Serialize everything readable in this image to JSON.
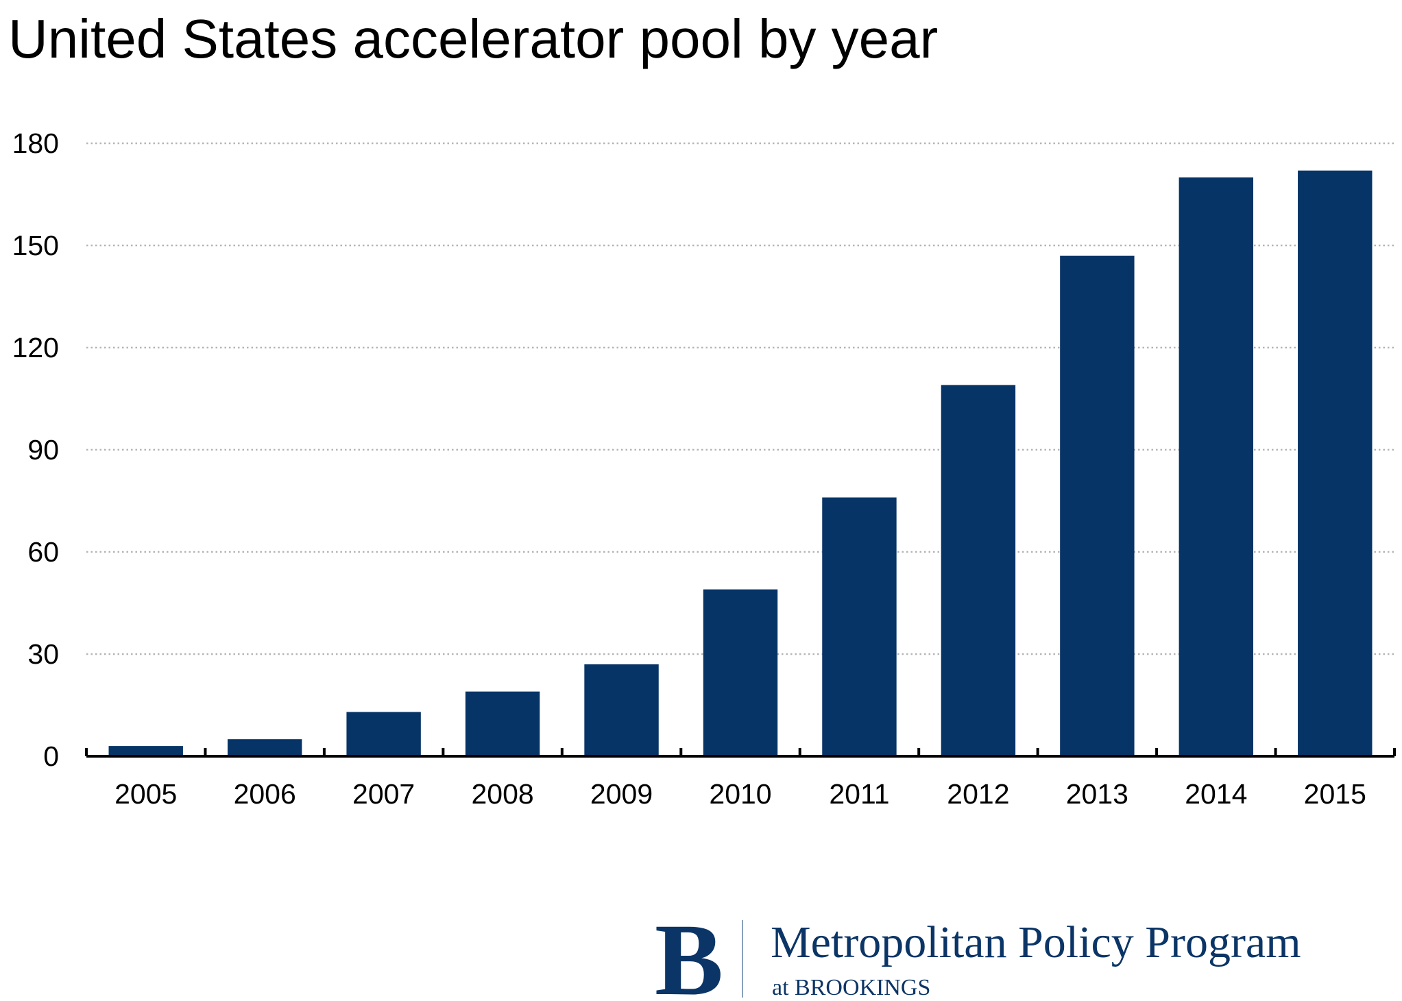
{
  "chart_data": {
    "type": "bar",
    "title": "United States accelerator pool by year",
    "xlabel": "",
    "ylabel": "",
    "categories": [
      "2005",
      "2006",
      "2007",
      "2008",
      "2009",
      "2010",
      "2011",
      "2012",
      "2013",
      "2014",
      "2015"
    ],
    "values": [
      3,
      5,
      13,
      19,
      27,
      49,
      76,
      109,
      147,
      170,
      172
    ],
    "ylim": [
      0,
      180
    ],
    "yticks": [
      "0",
      "30",
      "60",
      "90",
      "120",
      "150",
      "180"
    ],
    "grid": true,
    "legend": "none",
    "bar_color": "#073467"
  },
  "branding": {
    "logo_letter": "B",
    "program": "Metropolitan Policy Program",
    "org": "at BROOKINGS",
    "color": "#0b3566"
  }
}
